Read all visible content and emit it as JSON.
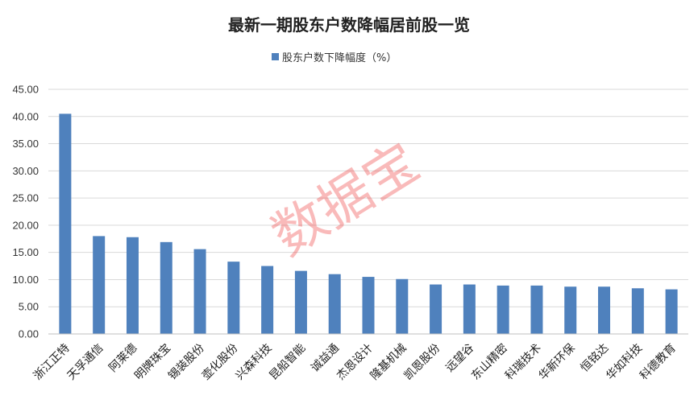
{
  "chart_data": {
    "type": "bar",
    "title": "最新一期股东户数降幅居前股一览",
    "xlabel": "",
    "ylabel": "",
    "ylim": [
      0,
      45
    ],
    "y_ticks": [
      "0.00",
      "5.00",
      "10.00",
      "15.00",
      "20.00",
      "25.00",
      "30.00",
      "35.00",
      "40.00",
      "45.00"
    ],
    "grid": true,
    "legend_position": "top-center",
    "categories": [
      "浙江正特",
      "天孚通信",
      "阿莱德",
      "明牌珠宝",
      "锡装股份",
      "壶化股份",
      "兴森科技",
      "昆船智能",
      "诚益通",
      "杰恩设计",
      "隆基机械",
      "凯恩股份",
      "远望谷",
      "东山精密",
      "科瑞技术",
      "华新环保",
      "恒铭达",
      "华如科技",
      "科德教育"
    ],
    "series": [
      {
        "name": "股东户数下降幅度（%）",
        "color": "#4f81bd",
        "values": [
          40.5,
          18.0,
          17.8,
          16.9,
          15.6,
          13.3,
          12.5,
          11.6,
          11.0,
          10.5,
          10.1,
          9.1,
          9.1,
          8.9,
          8.9,
          8.7,
          8.7,
          8.4,
          8.2
        ]
      }
    ]
  },
  "watermark": "数据宝"
}
